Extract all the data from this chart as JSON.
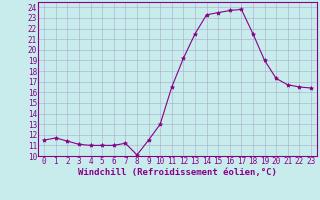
{
  "x": [
    0,
    1,
    2,
    3,
    4,
    5,
    6,
    7,
    8,
    9,
    10,
    11,
    12,
    13,
    14,
    15,
    16,
    17,
    18,
    19,
    20,
    21,
    22,
    23
  ],
  "y": [
    11.5,
    11.7,
    11.4,
    11.1,
    11.0,
    11.0,
    11.0,
    11.2,
    10.1,
    11.5,
    13.0,
    16.5,
    19.2,
    21.5,
    23.3,
    23.5,
    23.7,
    23.8,
    21.5,
    19.0,
    17.3,
    16.7,
    16.5,
    16.4
  ],
  "line_color": "#880088",
  "marker": "*",
  "marker_size": 3,
  "xlabel": "Windchill (Refroidissement éolien,°C)",
  "xlim": [
    -0.5,
    23.5
  ],
  "ylim": [
    10,
    24.5
  ],
  "yticks": [
    10,
    11,
    12,
    13,
    14,
    15,
    16,
    17,
    18,
    19,
    20,
    21,
    22,
    23,
    24
  ],
  "xticks": [
    0,
    1,
    2,
    3,
    4,
    5,
    6,
    7,
    8,
    9,
    10,
    11,
    12,
    13,
    14,
    15,
    16,
    17,
    18,
    19,
    20,
    21,
    22,
    23
  ],
  "bg_color": "#c8ecec",
  "grid_color": "#aaaacc",
  "tick_color": "#880088",
  "label_color": "#880088",
  "tick_fontsize": 5.5,
  "xlabel_fontsize": 6.5
}
